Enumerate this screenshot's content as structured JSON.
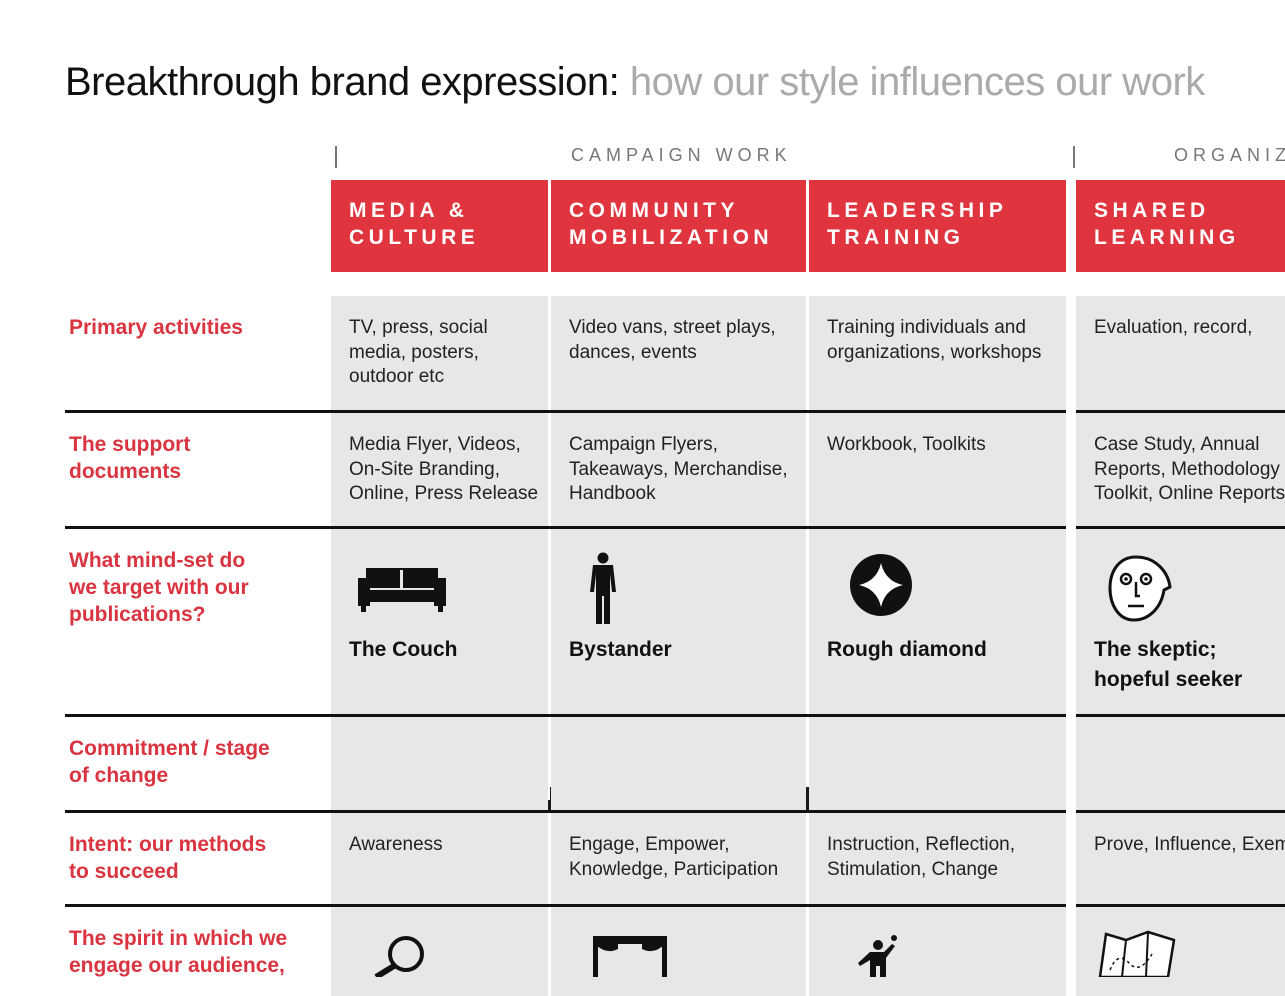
{
  "header": {
    "title": "Breakthrough brand expression:",
    "subtitle": "how our style influences our work"
  },
  "groups": [
    "CAMPAIGN WORK",
    "ORGANIZ"
  ],
  "columns": [
    [
      "MEDIA &",
      "CULTURE"
    ],
    [
      "COMMUNITY",
      "MOBILIZATION"
    ],
    [
      "LEADERSHIP",
      "TRAINING"
    ],
    [
      "SHARED",
      "LEARNING"
    ]
  ],
  "rows": [
    {
      "label": [
        "Primary activities"
      ],
      "cells": [
        [
          "TV, press, social",
          "media, posters,",
          "outdoor etc"
        ],
        [
          "Video vans, street plays,",
          "dances, events"
        ],
        [
          "Training individuals and",
          "organizations, workshops"
        ],
        [
          "Evaluation, record,"
        ]
      ]
    },
    {
      "label": [
        "The support",
        "documents"
      ],
      "cells": [
        [
          "Media Flyer, Videos,",
          "On-Site Branding,",
          "Online, Press Release"
        ],
        [
          "Campaign Flyers,",
          "Takeaways, Merchandise,",
          "Handbook"
        ],
        [
          "Workbook, Toolkits"
        ],
        [
          "Case Study, Annual",
          "Reports, Methodology",
          "Toolkit, Online Reports"
        ]
      ]
    },
    {
      "label": [
        "What mind-set do",
        "we target with our",
        "publications?"
      ],
      "cells": [
        [
          "The Couch"
        ],
        [
          "Bystander"
        ],
        [
          "Rough diamond"
        ],
        [
          "The skeptic;",
          "hopeful seeker"
        ]
      ]
    },
    {
      "label": [
        "Commitment / stage",
        "of change"
      ],
      "cells": []
    },
    {
      "label": [
        "Intent: our methods",
        "to succeed"
      ],
      "cells": [
        [
          "Awareness"
        ],
        [
          "Engage, Empower,",
          "Knowledge, Participation"
        ],
        [
          "Instruction, Reflection,",
          "Stimulation, Change"
        ],
        [
          "Prove, Influence, Exem"
        ]
      ]
    },
    {
      "label": [
        "The spirit in which we",
        "engage our audience,"
      ],
      "cells": []
    }
  ]
}
